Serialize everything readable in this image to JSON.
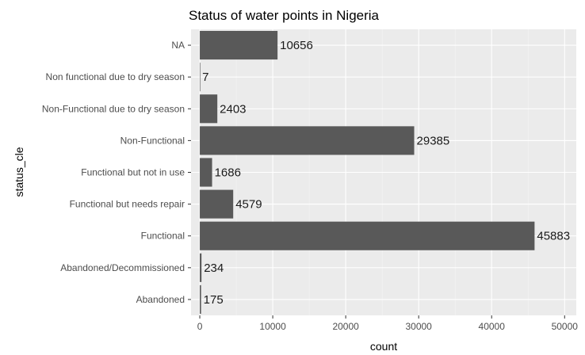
{
  "chart_data": {
    "type": "bar",
    "orientation": "horizontal",
    "title": "Status of water points in Nigeria",
    "xlabel": "count",
    "ylabel": "status_cle",
    "xlim": [
      -1200,
      51600
    ],
    "xticks": [
      0,
      10000,
      20000,
      30000,
      40000,
      50000
    ],
    "xtick_labels": [
      "0",
      "10000",
      "20000",
      "30000",
      "40000",
      "50000"
    ],
    "categories": [
      "NA",
      "Non functional due to dry season",
      "Non-Functional due to dry season",
      "Non-Functional",
      "Functional but not in use",
      "Functional but needs repair",
      "Functional",
      "Abandoned/Decommissioned",
      "Abandoned"
    ],
    "values": [
      10656,
      7,
      2403,
      29385,
      1686,
      4579,
      45883,
      234,
      175
    ],
    "value_labels": [
      "10656",
      "7",
      "2403",
      "29385",
      "1686",
      "4579",
      "45883",
      "234",
      "175"
    ],
    "grid": true,
    "legend": "none",
    "colors": {
      "panel_background": "#ebebeb",
      "grid_major": "#ffffff",
      "grid_minor": "#f5f5f5",
      "bar_fill": "#595959"
    }
  }
}
